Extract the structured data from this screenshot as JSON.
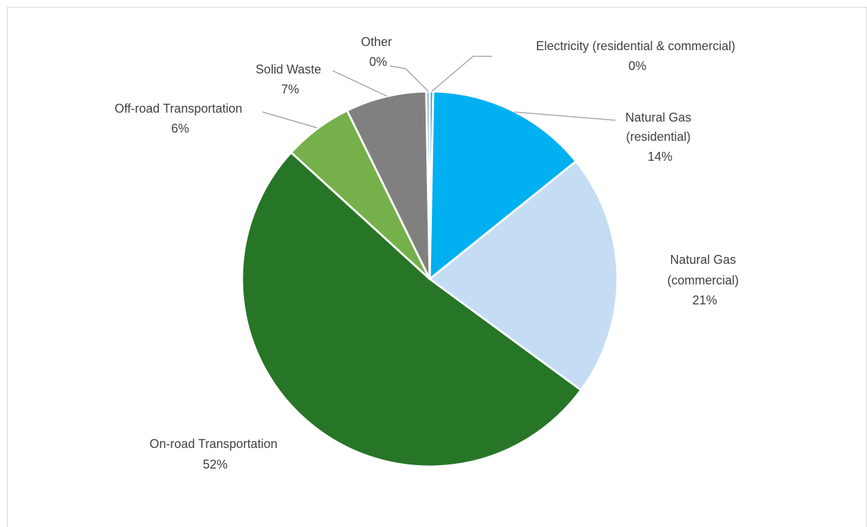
{
  "chart_data": {
    "type": "pie",
    "title": "",
    "slices": [
      {
        "name": "Electricity (residential & commercial)",
        "value": 0.3,
        "label": "0%",
        "color": "#00b0f0"
      },
      {
        "name": "Natural Gas (residential)",
        "value": 14,
        "label": "14%",
        "color": "#00b0f0"
      },
      {
        "name": "Natural Gas (commercial)",
        "value": 21,
        "label": "21%",
        "color": "#c5dcf5"
      },
      {
        "name": "On-road Transportation",
        "value": 52,
        "label": "52%",
        "color": "#277527"
      },
      {
        "name": "Off-road Transportation",
        "value": 6,
        "label": "6%",
        "color": "#76b04b"
      },
      {
        "name": "Solid Waste",
        "value": 7,
        "label": "7%",
        "color": "#808080"
      },
      {
        "name": "Other",
        "value": 0.3,
        "label": "0%",
        "color": "#a6a6a6"
      }
    ],
    "legend": "none",
    "data_labels": "category-and-percent"
  }
}
